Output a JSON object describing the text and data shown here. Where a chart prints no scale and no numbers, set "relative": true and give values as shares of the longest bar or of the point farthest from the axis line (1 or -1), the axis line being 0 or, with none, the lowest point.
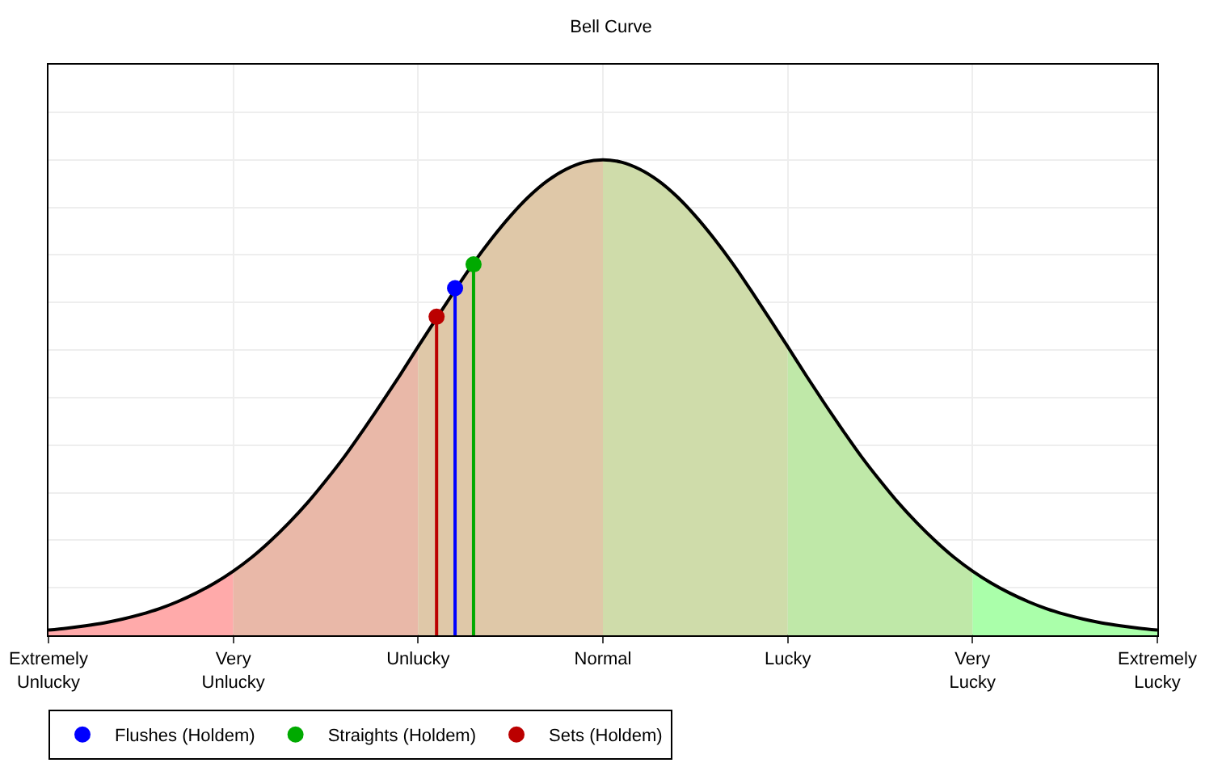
{
  "chart_data": {
    "type": "area",
    "title": "Bell Curve",
    "relative": true,
    "grid": true,
    "legend": "bottom left",
    "categories": [
      "Extremely\nUnlucky",
      null,
      null,
      null,
      null,
      null,
      null,
      null,
      null,
      null,
      "Very\nUnlucky",
      null,
      null,
      null,
      null,
      null,
      null,
      null,
      null,
      null,
      "Unlucky",
      null,
      null,
      null,
      null,
      null,
      null,
      null,
      null,
      null,
      "Normal",
      null,
      null,
      null,
      null,
      null,
      null,
      null,
      null,
      null,
      "Lucky",
      null,
      null,
      null,
      null,
      null,
      null,
      null,
      null,
      null,
      "Very\nLucky",
      null,
      null,
      null,
      null,
      null,
      null,
      null,
      null,
      null,
      "Extremely\nLucky"
    ],
    "series": [
      {
        "type": "line",
        "color": "#000000",
        "values": [
          0.011,
          0.015,
          0.02,
          0.026,
          0.034,
          0.044,
          0.056,
          0.071,
          0.089,
          0.11,
          0.135,
          0.164,
          0.198,
          0.236,
          0.278,
          0.325,
          0.375,
          0.43,
          0.487,
          0.546,
          0.607,
          0.667,
          0.726,
          0.783,
          0.835,
          0.882,
          0.923,
          0.956,
          0.98,
          0.995,
          1,
          0.995,
          0.98,
          0.956,
          0.923,
          0.882,
          0.835,
          0.783,
          0.726,
          0.667,
          0.607,
          0.546,
          0.487,
          0.43,
          0.375,
          0.325,
          0.278,
          0.236,
          0.198,
          0.164,
          0.135,
          0.11,
          0.089,
          0.071,
          0.056,
          0.044,
          0.034,
          0.026,
          0.02,
          0.015,
          0.011
        ]
      },
      {
        "color": "#ffaaaa",
        "values": [
          0.011,
          0.015,
          0.02,
          0.026,
          0.034,
          0.044,
          0.056,
          0.071,
          0.089,
          0.11,
          0.135,
          null,
          null,
          null,
          null,
          null,
          null,
          null,
          null,
          null,
          null,
          null,
          null,
          null,
          null,
          null,
          null,
          null,
          null,
          null,
          null,
          null,
          null,
          null,
          null,
          null,
          null,
          null,
          null,
          null,
          null,
          null,
          null,
          null,
          null,
          null,
          null,
          null,
          null,
          null,
          null,
          null,
          null,
          null,
          null,
          null,
          null,
          null,
          null,
          null,
          null
        ]
      },
      {
        "color": "#e9b8a8",
        "values": [
          null,
          null,
          null,
          null,
          null,
          null,
          null,
          null,
          null,
          null,
          0.135,
          0.164,
          0.198,
          0.236,
          0.278,
          0.325,
          0.375,
          0.43,
          0.487,
          0.546,
          0.607,
          null,
          null,
          null,
          null,
          null,
          null,
          null,
          null,
          null,
          null,
          null,
          null,
          null,
          null,
          null,
          null,
          null,
          null,
          null,
          null,
          null,
          null,
          null,
          null,
          null,
          null,
          null,
          null,
          null,
          null,
          null,
          null,
          null,
          null,
          null,
          null,
          null,
          null,
          null,
          null
        ]
      },
      {
        "color": "#dfc8a8",
        "values": [
          null,
          null,
          null,
          null,
          null,
          null,
          null,
          null,
          null,
          null,
          null,
          null,
          null,
          null,
          null,
          null,
          null,
          null,
          null,
          null,
          0.607,
          0.667,
          0.726,
          0.783,
          0.835,
          0.882,
          0.923,
          0.956,
          0.98,
          0.995,
          1,
          null,
          null,
          null,
          null,
          null,
          null,
          null,
          null,
          null,
          null,
          null,
          null,
          null,
          null,
          null,
          null,
          null,
          null,
          null,
          null,
          null,
          null,
          null,
          null,
          null,
          null,
          null,
          null,
          null,
          null
        ]
      },
      {
        "color": "#cfdcaa",
        "values": [
          null,
          null,
          null,
          null,
          null,
          null,
          null,
          null,
          null,
          null,
          null,
          null,
          null,
          null,
          null,
          null,
          null,
          null,
          null,
          null,
          null,
          null,
          null,
          null,
          null,
          null,
          null,
          null,
          null,
          null,
          1,
          0.995,
          0.98,
          0.956,
          0.923,
          0.882,
          0.835,
          0.783,
          0.726,
          0.667,
          0.607,
          null,
          null,
          null,
          null,
          null,
          null,
          null,
          null,
          null,
          null,
          null,
          null,
          null,
          null,
          null,
          null,
          null,
          null,
          null,
          null
        ]
      },
      {
        "color": "#bfe8a8",
        "values": [
          null,
          null,
          null,
          null,
          null,
          null,
          null,
          null,
          null,
          null,
          null,
          null,
          null,
          null,
          null,
          null,
          null,
          null,
          null,
          null,
          null,
          null,
          null,
          null,
          null,
          null,
          null,
          null,
          null,
          null,
          null,
          null,
          null,
          null,
          null,
          null,
          null,
          null,
          null,
          null,
          0.607,
          0.546,
          0.487,
          0.43,
          0.375,
          0.325,
          0.278,
          0.236,
          0.198,
          0.164,
          0.135,
          null,
          null,
          null,
          null,
          null,
          null,
          null,
          null,
          null,
          null
        ]
      },
      {
        "color": "#aaffaa",
        "values": [
          null,
          null,
          null,
          null,
          null,
          null,
          null,
          null,
          null,
          null,
          null,
          null,
          null,
          null,
          null,
          null,
          null,
          null,
          null,
          null,
          null,
          null,
          null,
          null,
          null,
          null,
          null,
          null,
          null,
          null,
          null,
          null,
          null,
          null,
          null,
          null,
          null,
          null,
          null,
          null,
          null,
          null,
          null,
          null,
          null,
          null,
          null,
          null,
          null,
          null,
          0.135,
          0.11,
          0.089,
          0.071,
          0.056,
          0.044,
          0.034,
          0.026,
          0.02,
          0.015,
          0.011
        ]
      },
      {
        "type": "lollipop",
        "name": "Flushes (Holdem)",
        "color": "#0000ff",
        "marker": "circle",
        "values": [
          null,
          null,
          null,
          null,
          null,
          null,
          null,
          null,
          null,
          null,
          null,
          null,
          null,
          null,
          null,
          null,
          null,
          null,
          null,
          null,
          null,
          null,
          0.73,
          null,
          null,
          null,
          null,
          null,
          null,
          null,
          null,
          null,
          null,
          null,
          null,
          null,
          null,
          null,
          null,
          null,
          null,
          null,
          null,
          null,
          null,
          null,
          null,
          null,
          null,
          null,
          null,
          null,
          null,
          null,
          null,
          null,
          null,
          null,
          null,
          null,
          null
        ]
      },
      {
        "type": "lollipop",
        "name": "Straights (Holdem)",
        "color": "#00aa00",
        "marker": "circle",
        "values": [
          null,
          null,
          null,
          null,
          null,
          null,
          null,
          null,
          null,
          null,
          null,
          null,
          null,
          null,
          null,
          null,
          null,
          null,
          null,
          null,
          null,
          null,
          null,
          0.78,
          null,
          null,
          null,
          null,
          null,
          null,
          null,
          null,
          null,
          null,
          null,
          null,
          null,
          null,
          null,
          null,
          null,
          null,
          null,
          null,
          null,
          null,
          null,
          null,
          null,
          null,
          null,
          null,
          null,
          null,
          null,
          null,
          null,
          null,
          null,
          null,
          null
        ]
      },
      {
        "type": "lollipop",
        "name": "Sets (Holdem)",
        "color": "#bb0000",
        "marker": "circle",
        "values": [
          null,
          null,
          null,
          null,
          null,
          null,
          null,
          null,
          null,
          null,
          null,
          null,
          null,
          null,
          null,
          null,
          null,
          null,
          null,
          null,
          null,
          0.67,
          null,
          null,
          null,
          null,
          null,
          null,
          null,
          null,
          null,
          null,
          null,
          null,
          null,
          null,
          null,
          null,
          null,
          null,
          null,
          null,
          null,
          null,
          null,
          null,
          null,
          null,
          null,
          null,
          null,
          null,
          null,
          null,
          null,
          null,
          null,
          null,
          null,
          null,
          null
        ]
      }
    ]
  }
}
